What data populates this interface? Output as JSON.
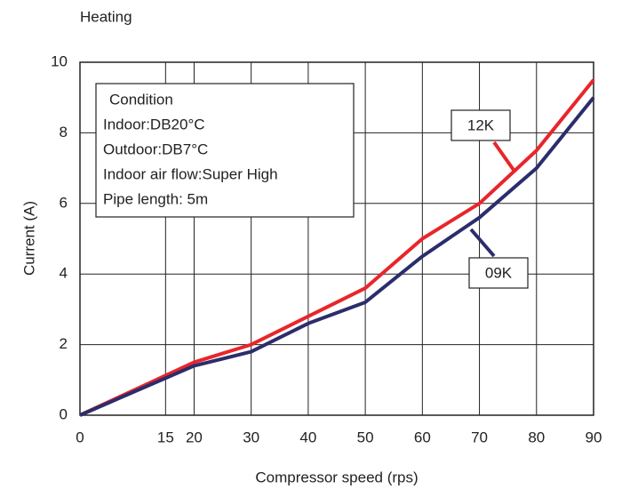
{
  "chart_data": {
    "type": "line",
    "title": "Heating",
    "xlabel": "Compressor speed (rps)",
    "ylabel": "Current (A)",
    "x": [
      0,
      20,
      30,
      40,
      50,
      60,
      70,
      80,
      90
    ],
    "series": [
      {
        "name": "12K",
        "color": "#e8262b",
        "values": [
          0,
          1.5,
          2,
          2.8,
          3.6,
          5,
          6,
          7.5,
          9.5
        ]
      },
      {
        "name": "09K",
        "color": "#2b2d6b",
        "values": [
          0,
          1.4,
          1.8,
          2.6,
          3.2,
          4.5,
          5.6,
          7,
          9
        ]
      }
    ],
    "xlim": [
      0,
      90
    ],
    "xticks": [
      0,
      15,
      20,
      30,
      40,
      50,
      60,
      70,
      80,
      90
    ],
    "ylim": [
      0,
      10
    ],
    "yticks": [
      0,
      2,
      4,
      6,
      8,
      10
    ],
    "grid": true,
    "annotation": [
      "Condition",
      "Indoor:DB20°C",
      "Outdoor:DB7°C",
      "Indoor air flow:Super High",
      "Pipe length: 5m"
    ]
  }
}
